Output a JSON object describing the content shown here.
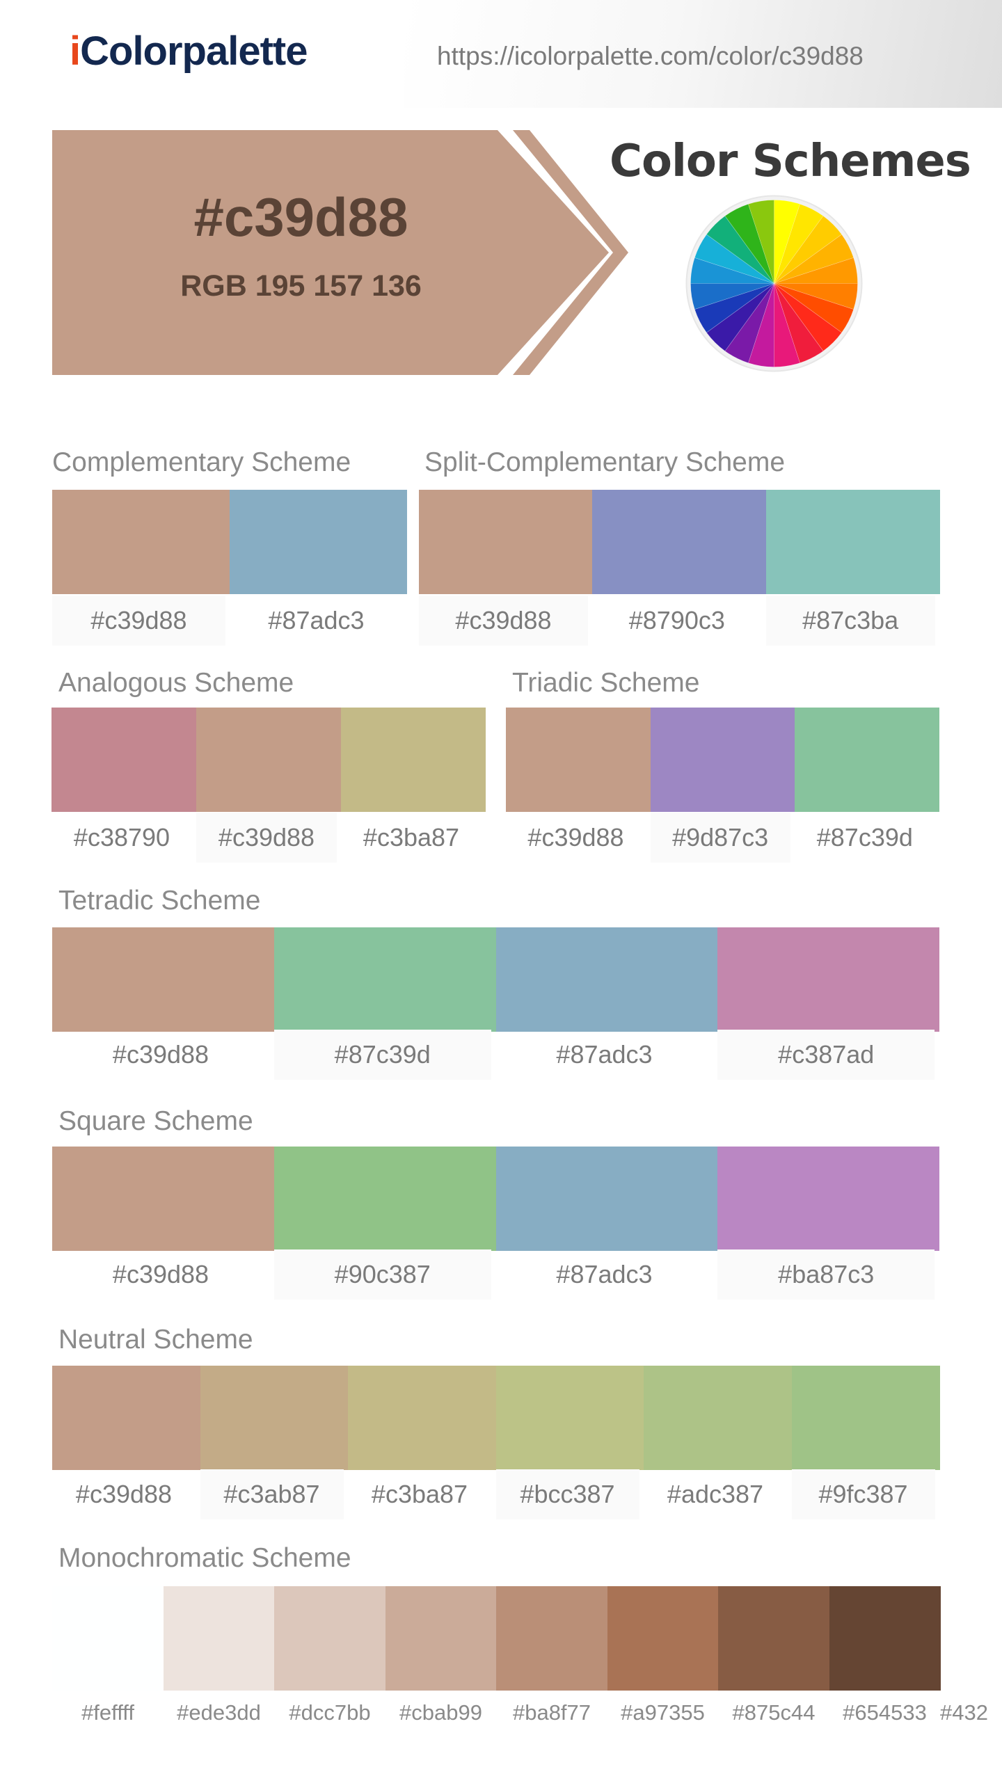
{
  "header": {
    "logo_i": "i",
    "logo_rest": "Colorpalette",
    "url": "https://icolorpalette.com/color/c39d88"
  },
  "hero": {
    "color": "#c39d88",
    "hex": "#c39d88",
    "rgb": "RGB 195 157 136",
    "text_color": "#5a4336"
  },
  "schemes_title": "Color Schemes",
  "icons": {
    "wheel": "color-wheel-icon",
    "logo": "icolorpalette-logo"
  },
  "wheel_colors": [
    "#ffff00",
    "#ffe600",
    "#ffcc00",
    "#ffb300",
    "#ff9900",
    "#ff7f00",
    "#ff4d00",
    "#ff2a1a",
    "#f01d3c",
    "#e8197a",
    "#c41a9e",
    "#7a1aa8",
    "#3a1aa8",
    "#1a3ab8",
    "#1a6ec9",
    "#1a94d6",
    "#17b0d8",
    "#12b07a",
    "#2fb41a",
    "#8ac80e"
  ],
  "complementary": {
    "title": "Complementary Scheme",
    "colors": [
      "#c39d88",
      "#87adc3"
    ]
  },
  "split": {
    "title": "Split-Complementary Scheme",
    "colors": [
      "#c39d88",
      "#8790c3",
      "#87c3ba"
    ]
  },
  "analogous": {
    "title": "Analogous Scheme",
    "colors": [
      "#c38790",
      "#c39d88",
      "#c3ba87"
    ]
  },
  "triadic": {
    "title": "Triadic Scheme",
    "colors": [
      "#c39d88",
      "#9d87c3",
      "#87c39d"
    ]
  },
  "tetradic": {
    "title": "Tetradic Scheme",
    "colors": [
      "#c39d88",
      "#87c39d",
      "#87adc3",
      "#c387ad"
    ]
  },
  "square": {
    "title": "Square Scheme",
    "colors": [
      "#c39d88",
      "#90c387",
      "#87adc3",
      "#ba87c3"
    ]
  },
  "neutral": {
    "title": "Neutral Scheme",
    "colors": [
      "#c39d88",
      "#c3ab87",
      "#c3ba87",
      "#bcc387",
      "#adc387",
      "#9fc387"
    ]
  },
  "monochromatic": {
    "title": "Monochromatic Scheme",
    "colors": [
      "#feffff",
      "#ede3dd",
      "#dcc7bb",
      "#cbab99",
      "#ba8f77",
      "#a97355",
      "#875c44",
      "#654533",
      "#432"
    ]
  }
}
